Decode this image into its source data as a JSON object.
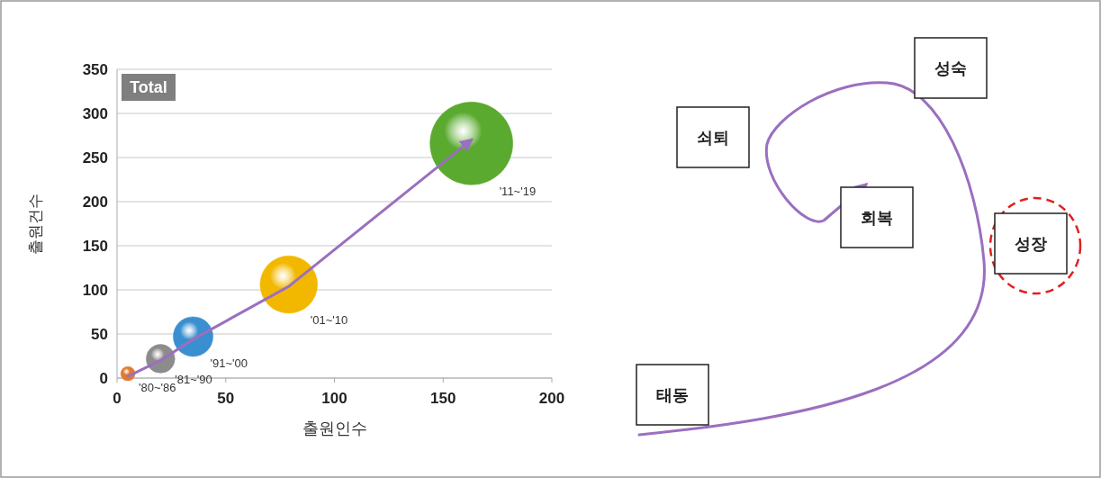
{
  "chart_data": [
    {
      "type": "bubble",
      "xlabel": "출원인수",
      "ylabel": "출원건수",
      "annotations": [
        "Total"
      ],
      "xlim": [
        0,
        200
      ],
      "ylim": [
        0,
        350
      ],
      "xticks": [
        0,
        50,
        100,
        150,
        200
      ],
      "yticks": [
        0,
        50,
        100,
        150,
        200,
        250,
        300,
        350
      ],
      "grid": "y",
      "series": [
        {
          "type": "line",
          "color": "#9b6fc0",
          "x": [
            5,
            20,
            35,
            79,
            163
          ],
          "values": [
            2,
            20,
            44,
            104,
            270
          ]
        },
        {
          "type": "bubble",
          "x": [
            5,
            20,
            35,
            79,
            163
          ],
          "values": [
            5,
            22,
            47,
            106,
            266
          ],
          "sizes": [
            0.03,
            0.12,
            0.23,
            0.48,
            1
          ],
          "colors": [
            "#e07a30",
            "#8c8c8c",
            "#3a8fd0",
            "#f2b800",
            "#5aaa30"
          ],
          "value_labels": [
            "'80~'86",
            "'81~'90",
            "'91~'00",
            "'01~'10",
            "'11~'19"
          ]
        }
      ]
    },
    {
      "type": "other",
      "annotations": [
        "태동",
        "성장",
        "성숙",
        "쇠퇴",
        "회복"
      ]
    }
  ]
}
